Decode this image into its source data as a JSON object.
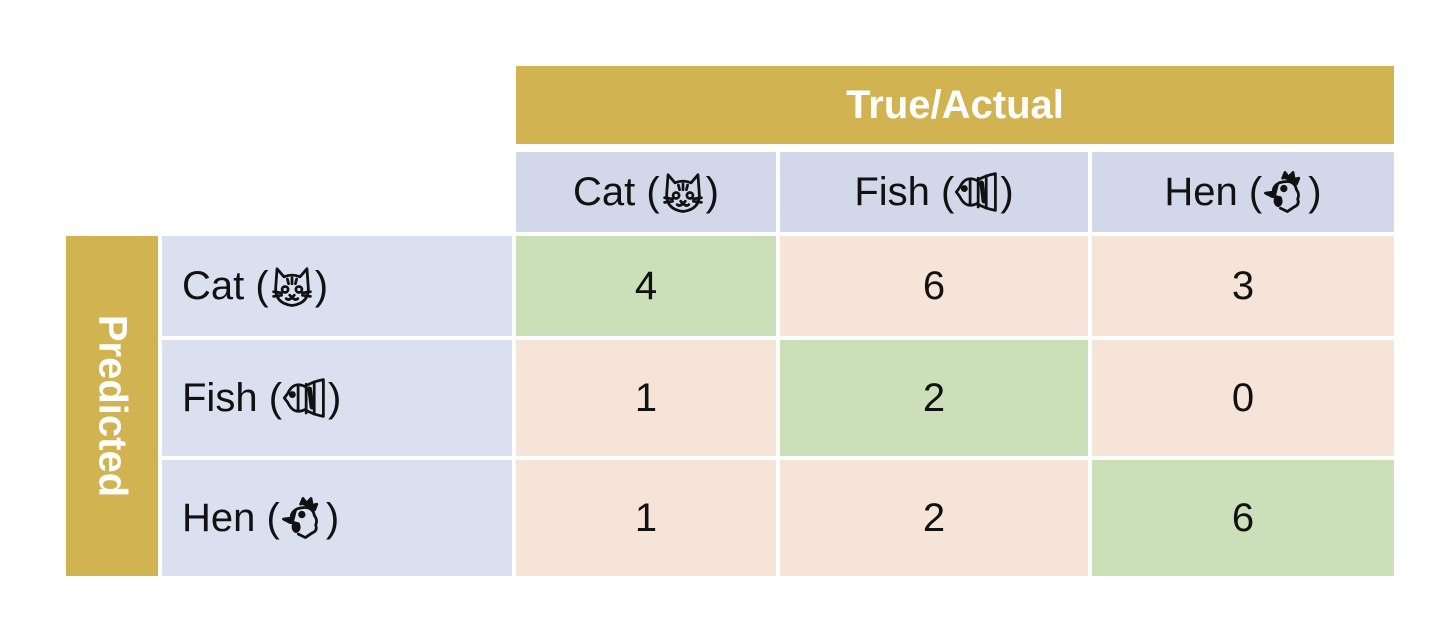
{
  "chart_data": {
    "type": "table",
    "column_group_label": "True/Actual",
    "row_group_label": "Predicted",
    "columns": [
      {
        "label": "Cat",
        "icon": "cat-icon"
      },
      {
        "label": "Fish",
        "icon": "fish-icon"
      },
      {
        "label": "Hen",
        "icon": "hen-icon"
      }
    ],
    "rows": [
      {
        "label": "Cat",
        "icon": "cat-icon",
        "values": [
          4,
          6,
          3
        ]
      },
      {
        "label": "Fish",
        "icon": "fish-icon",
        "values": [
          1,
          2,
          0
        ]
      },
      {
        "label": "Hen",
        "icon": "hen-icon",
        "values": [
          1,
          2,
          6
        ]
      }
    ],
    "colors": {
      "group_header": "#d1b352",
      "column_header": "#d2d8e9",
      "row_header": "#dae0ef",
      "diagonal": "#cbdfb8",
      "off_diagonal": "#f7e4d8"
    }
  }
}
